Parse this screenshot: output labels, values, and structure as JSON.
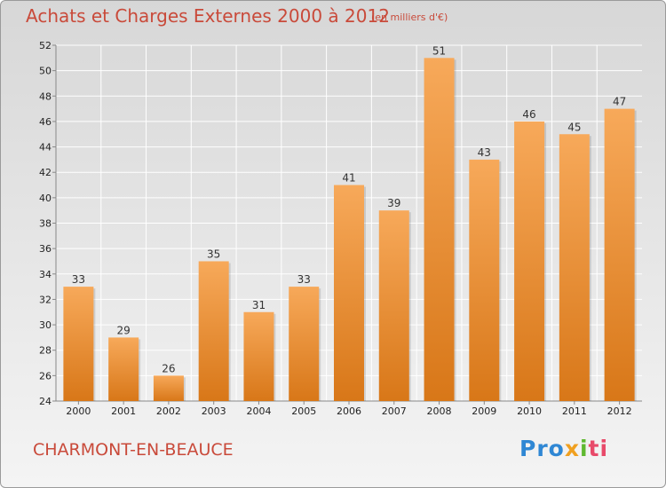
{
  "header": {
    "title": "Achats et Charges Externes 2000 à 2012",
    "subtitle": "(en milliers d'€)"
  },
  "footer": {
    "city": "CHARMONT-EN-BEAUCE",
    "logo": [
      "Pro",
      "x",
      "i",
      "ti"
    ]
  },
  "colors": {
    "bar_top": "#f7a95a",
    "bar_bottom": "#d87718",
    "title": "#c94a3a"
  },
  "chart_data": {
    "type": "bar",
    "categories": [
      "2000",
      "2001",
      "2002",
      "2003",
      "2004",
      "2005",
      "2006",
      "2007",
      "2008",
      "2009",
      "2010",
      "2011",
      "2012"
    ],
    "values": [
      33,
      29,
      26,
      35,
      31,
      33,
      41,
      39,
      51,
      43,
      46,
      45,
      47
    ],
    "ylim": [
      24,
      52
    ],
    "yticks": [
      24,
      26,
      28,
      30,
      32,
      34,
      36,
      38,
      40,
      42,
      44,
      46,
      48,
      50,
      52
    ],
    "grid": true
  }
}
